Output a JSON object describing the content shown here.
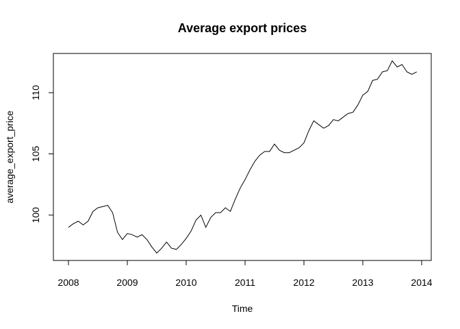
{
  "chart_data": {
    "type": "line",
    "title": "Average export prices",
    "xlabel": "Time",
    "ylabel": "average_export_price",
    "xlim": [
      2008,
      2014
    ],
    "ylim": [
      96.8,
      112.7
    ],
    "x_ticks": [
      "2008",
      "2009",
      "2010",
      "2011",
      "2012",
      "2013",
      "2014"
    ],
    "y_ticks": [
      "100",
      "105",
      "110"
    ],
    "grid": false,
    "legend": "none",
    "line_color": "#000000",
    "series": [
      {
        "frequency": "monthly",
        "start": "2008-01",
        "end": "2013-12",
        "values": [
          99.0,
          99.3,
          99.5,
          99.2,
          99.5,
          100.3,
          100.6,
          100.7,
          100.8,
          100.2,
          98.6,
          98.0,
          98.5,
          98.4,
          98.2,
          98.4,
          98.0,
          97.4,
          96.9,
          97.3,
          97.8,
          97.3,
          97.2,
          97.6,
          98.1,
          98.7,
          99.6,
          100.0,
          99.0,
          99.8,
          100.2,
          100.2,
          100.6,
          100.3,
          101.3,
          102.2,
          102.9,
          103.7,
          104.4,
          104.9,
          105.2,
          105.2,
          105.8,
          105.3,
          105.1,
          105.1,
          105.3,
          105.5,
          105.9,
          106.9,
          107.7,
          107.4,
          107.1,
          107.3,
          107.8,
          107.7,
          108.0,
          108.3,
          108.4,
          109.0,
          109.8,
          110.1,
          111.0,
          111.1,
          111.7,
          111.8,
          112.6,
          112.1,
          112.3,
          111.7,
          111.5,
          111.7
        ]
      }
    ]
  }
}
